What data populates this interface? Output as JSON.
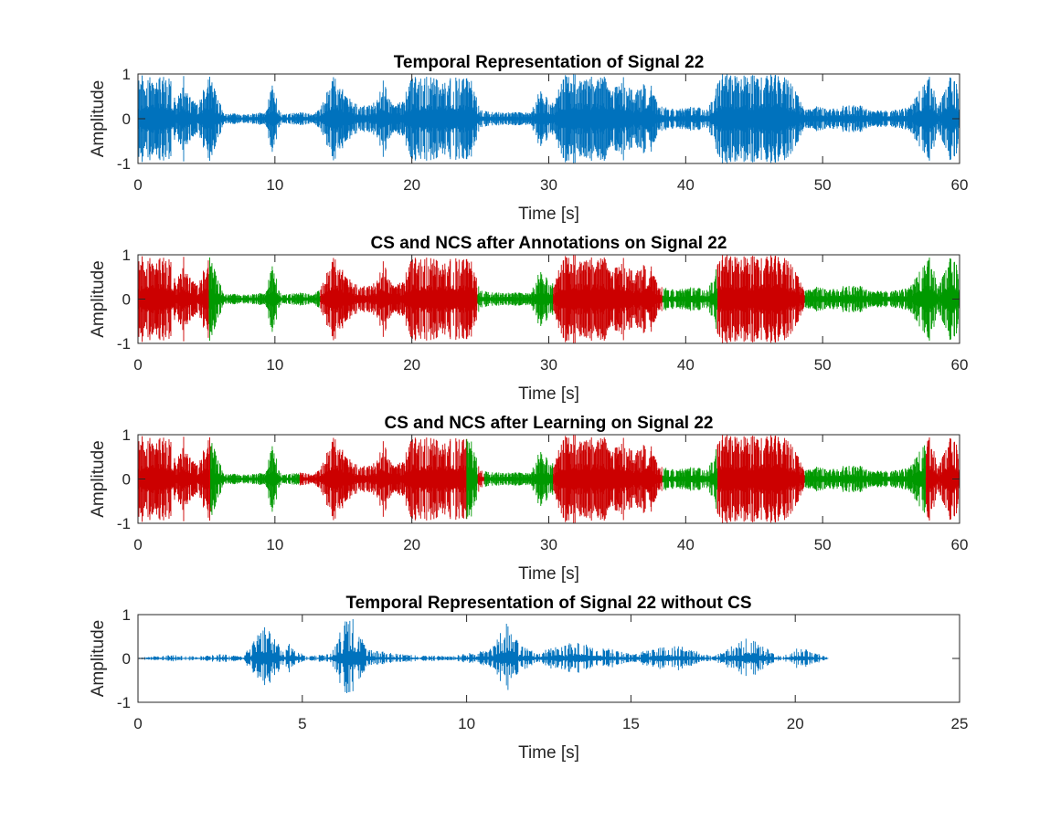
{
  "chart_data": [
    {
      "type": "line",
      "title": "Temporal Representation of Signal 22",
      "xlabel": "Time [s]",
      "ylabel": "Amplitude",
      "xlim": [
        0,
        60
      ],
      "ylim": [
        -1,
        1
      ],
      "xticks": [
        0,
        10,
        20,
        30,
        40,
        50,
        60
      ],
      "yticks": [
        -1,
        0,
        1
      ],
      "xtick_labels": [
        "0",
        "10",
        "20",
        "30",
        "40",
        "50",
        "60"
      ],
      "ytick_labels": [
        "-1",
        "0",
        "1"
      ],
      "grid": false,
      "colors": {
        "signal": "#0072BD"
      },
      "series": [
        {
          "color": "signal",
          "amplitude_envelope": [
            [
              0.0,
              0.9
            ],
            [
              0.3,
              1.0
            ],
            [
              0.6,
              0.8
            ],
            [
              1.0,
              1.0
            ],
            [
              1.5,
              1.0
            ],
            [
              2.0,
              1.0
            ],
            [
              2.4,
              0.9
            ],
            [
              2.8,
              0.3
            ],
            [
              3.3,
              1.0
            ],
            [
              3.7,
              0.6
            ],
            [
              4.3,
              0.3
            ],
            [
              5.2,
              1.0
            ],
            [
              6.3,
              0.1
            ],
            [
              7.0,
              0.12
            ],
            [
              8.0,
              0.1
            ],
            [
              9.3,
              0.15
            ],
            [
              9.8,
              0.75
            ],
            [
              10.5,
              0.1
            ],
            [
              12.0,
              0.15
            ],
            [
              12.8,
              0.1
            ],
            [
              13.4,
              0.3
            ],
            [
              14.3,
              1.0
            ],
            [
              14.9,
              0.7
            ],
            [
              15.6,
              0.4
            ],
            [
              16.2,
              0.3
            ],
            [
              16.8,
              0.3
            ],
            [
              17.4,
              0.4
            ],
            [
              17.9,
              0.9
            ],
            [
              18.6,
              0.3
            ],
            [
              19.3,
              0.4
            ],
            [
              20.1,
              1.0
            ],
            [
              20.7,
              0.9
            ],
            [
              21.4,
              1.0
            ],
            [
              22.2,
              0.8
            ],
            [
              22.8,
              1.0
            ],
            [
              23.4,
              0.9
            ],
            [
              24.2,
              1.0
            ],
            [
              25.0,
              0.2
            ],
            [
              26.0,
              0.15
            ],
            [
              27.2,
              0.15
            ],
            [
              28.7,
              0.15
            ],
            [
              29.4,
              0.7
            ],
            [
              30.2,
              0.3
            ],
            [
              31.2,
              1.0
            ],
            [
              32.0,
              1.0
            ],
            [
              32.5,
              1.0
            ],
            [
              33.2,
              1.0
            ],
            [
              34.0,
              1.0
            ],
            [
              34.7,
              0.7
            ],
            [
              35.3,
              1.0
            ],
            [
              36.2,
              0.6
            ],
            [
              37.3,
              0.9
            ],
            [
              38.0,
              0.3
            ],
            [
              39.3,
              0.2
            ],
            [
              40.6,
              0.3
            ],
            [
              41.6,
              0.2
            ],
            [
              42.6,
              1.0
            ],
            [
              43.4,
              1.0
            ],
            [
              44.1,
              1.0
            ],
            [
              45.0,
              1.0
            ],
            [
              45.7,
              1.0
            ],
            [
              46.4,
              1.0
            ],
            [
              47.2,
              1.0
            ],
            [
              48.0,
              0.7
            ],
            [
              48.8,
              0.2
            ],
            [
              49.8,
              0.3
            ],
            [
              50.4,
              0.2
            ],
            [
              51.5,
              0.3
            ],
            [
              52.8,
              0.3
            ],
            [
              53.5,
              0.2
            ],
            [
              55.2,
              0.2
            ],
            [
              56.3,
              0.25
            ],
            [
              57.8,
              1.0
            ],
            [
              58.5,
              0.3
            ],
            [
              59.3,
              1.0
            ],
            [
              60.0,
              0.7
            ]
          ]
        }
      ]
    },
    {
      "type": "line",
      "title": "CS and NCS after Annotations on Signal 22",
      "xlabel": "Time [s]",
      "ylabel": "Amplitude",
      "xlim": [
        0,
        60
      ],
      "ylim": [
        -1,
        1
      ],
      "xticks": [
        0,
        10,
        20,
        30,
        40,
        50,
        60
      ],
      "yticks": [
        -1,
        0,
        1
      ],
      "xtick_labels": [
        "0",
        "10",
        "20",
        "30",
        "40",
        "50",
        "60"
      ],
      "ytick_labels": [
        "-1",
        "0",
        "1"
      ],
      "grid": false,
      "colors": {
        "CS": "#CC0000",
        "NCS": "#009900"
      },
      "segments": [
        {
          "class": "CS",
          "start": 0.0,
          "end": 5.2
        },
        {
          "class": "NCS",
          "start": 5.2,
          "end": 13.3
        },
        {
          "class": "CS",
          "start": 13.3,
          "end": 24.8
        },
        {
          "class": "NCS",
          "start": 24.8,
          "end": 30.3
        },
        {
          "class": "CS",
          "start": 30.3,
          "end": 38.3
        },
        {
          "class": "NCS",
          "start": 38.3,
          "end": 42.3
        },
        {
          "class": "CS",
          "start": 42.3,
          "end": 48.7
        },
        {
          "class": "NCS",
          "start": 48.7,
          "end": 60.0
        }
      ]
    },
    {
      "type": "line",
      "title": "CS and NCS after Learning on Signal 22",
      "xlabel": "Time [s]",
      "ylabel": "Amplitude",
      "xlim": [
        0,
        60
      ],
      "ylim": [
        -1,
        1
      ],
      "xticks": [
        0,
        10,
        20,
        30,
        40,
        50,
        60
      ],
      "yticks": [
        -1,
        0,
        1
      ],
      "xtick_labels": [
        "0",
        "10",
        "20",
        "30",
        "40",
        "50",
        "60"
      ],
      "ytick_labels": [
        "-1",
        "0",
        "1"
      ],
      "grid": false,
      "colors": {
        "CS": "#CC0000",
        "NCS": "#009900"
      },
      "segments": [
        {
          "class": "CS",
          "start": 0.0,
          "end": 5.3
        },
        {
          "class": "NCS",
          "start": 5.3,
          "end": 11.8
        },
        {
          "class": "CS",
          "start": 11.8,
          "end": 24.0
        },
        {
          "class": "NCS",
          "start": 24.0,
          "end": 24.8
        },
        {
          "class": "CS",
          "start": 24.8,
          "end": 25.3
        },
        {
          "class": "NCS",
          "start": 25.3,
          "end": 30.3
        },
        {
          "class": "CS",
          "start": 30.3,
          "end": 38.3
        },
        {
          "class": "NCS",
          "start": 38.3,
          "end": 42.3
        },
        {
          "class": "CS",
          "start": 42.3,
          "end": 48.7
        },
        {
          "class": "NCS",
          "start": 48.7,
          "end": 57.5
        },
        {
          "class": "CS",
          "start": 57.5,
          "end": 60.0
        }
      ]
    },
    {
      "type": "line",
      "title": "Temporal Representation of Signal 22 without CS",
      "xlabel": "Time [s]",
      "ylabel": "Amplitude",
      "xlim": [
        0,
        25
      ],
      "ylim": [
        -1,
        1
      ],
      "xticks": [
        0,
        5,
        10,
        15,
        20,
        25
      ],
      "yticks": [
        -1,
        0,
        1
      ],
      "xtick_labels": [
        "0",
        "5",
        "10",
        "15",
        "20",
        "25"
      ],
      "ytick_labels": [
        "-1",
        "0",
        "1"
      ],
      "grid": false,
      "colors": {
        "signal": "#0072BD"
      },
      "series": [
        {
          "color": "signal",
          "x_end": 21.0,
          "amplitude_envelope": [
            [
              0.0,
              0.02
            ],
            [
              1.0,
              0.08
            ],
            [
              1.6,
              0.05
            ],
            [
              2.4,
              0.08
            ],
            [
              2.5,
              0.1
            ],
            [
              3.2,
              0.05
            ],
            [
              3.7,
              0.6
            ],
            [
              3.9,
              0.8
            ],
            [
              4.5,
              0.2
            ],
            [
              4.6,
              0.35
            ],
            [
              5.1,
              0.05
            ],
            [
              5.8,
              0.1
            ],
            [
              6.4,
              1.0
            ],
            [
              6.6,
              0.9
            ],
            [
              7.0,
              0.2
            ],
            [
              7.6,
              0.15
            ],
            [
              8.0,
              0.1
            ],
            [
              9.5,
              0.05
            ],
            [
              10.7,
              0.2
            ],
            [
              11.3,
              0.9
            ],
            [
              11.6,
              0.3
            ],
            [
              12.2,
              0.15
            ],
            [
              13.3,
              0.4
            ],
            [
              13.7,
              0.3
            ],
            [
              14.2,
              0.25
            ],
            [
              15.0,
              0.1
            ],
            [
              15.8,
              0.25
            ],
            [
              16.4,
              0.3
            ],
            [
              16.9,
              0.2
            ],
            [
              17.5,
              0.05
            ],
            [
              18.6,
              0.5
            ],
            [
              18.8,
              0.45
            ],
            [
              19.2,
              0.2
            ],
            [
              19.6,
              0.05
            ],
            [
              20.1,
              0.25
            ],
            [
              20.4,
              0.2
            ],
            [
              21.0,
              0.02
            ]
          ]
        }
      ]
    }
  ]
}
